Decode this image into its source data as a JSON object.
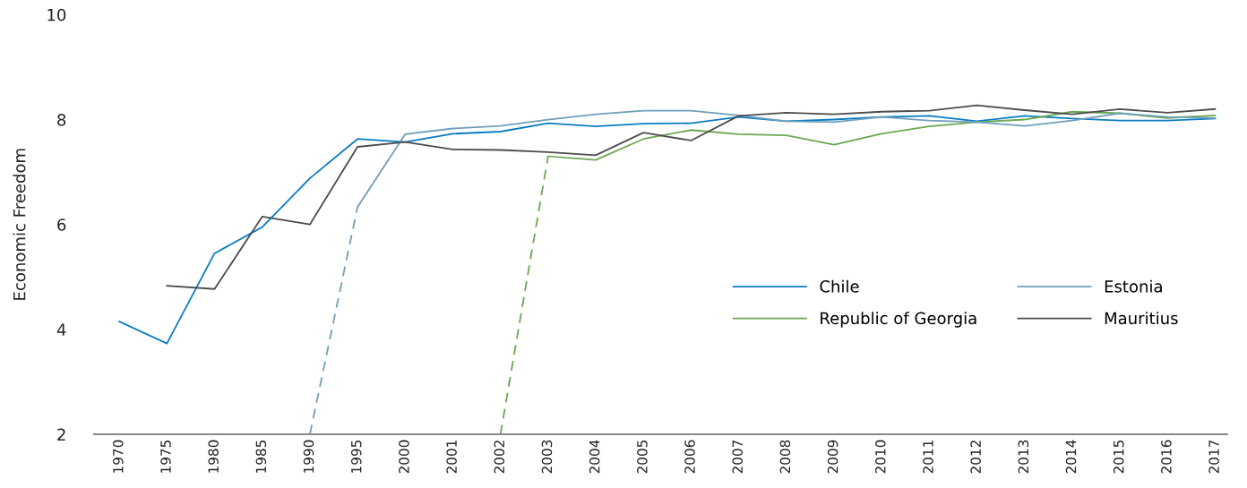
{
  "chart_data": {
    "type": "line",
    "ylabel": "Economic Freedom",
    "categories": [
      "1970",
      "1975",
      "1980",
      "1985",
      "1990",
      "1995",
      "2000",
      "2001",
      "2002",
      "2003",
      "2004",
      "2005",
      "2006",
      "2007",
      "2008",
      "2009",
      "2010",
      "2011",
      "2012",
      "2013",
      "2014",
      "2015",
      "2016",
      "2017"
    ],
    "ylim": [
      2,
      10
    ],
    "yticks": [
      2,
      4,
      6,
      8,
      10
    ],
    "grid": false,
    "legend": "bottom right",
    "marker": "none",
    "line_style": "solid",
    "series": [
      {
        "name": "Chile",
        "color": "#0a7cc1",
        "values": [
          4.15,
          3.73,
          5.45,
          5.95,
          6.88,
          7.63,
          7.57,
          7.73,
          7.77,
          7.93,
          7.87,
          7.92,
          7.93,
          8.05,
          7.97,
          8.0,
          8.05,
          8.07,
          7.97,
          8.07,
          8.02,
          7.98,
          7.98,
          8.02
        ]
      },
      {
        "name": "Republic of Georgia",
        "color": "#6aa84f",
        "values": [
          null,
          null,
          null,
          null,
          null,
          null,
          null,
          null,
          null,
          7.3,
          7.23,
          7.63,
          7.8,
          7.72,
          7.7,
          7.52,
          7.73,
          7.87,
          7.95,
          8.0,
          8.15,
          8.12,
          8.03,
          8.08
        ]
      },
      {
        "name": "Estonia",
        "color": "#6f9fba",
        "values": [
          null,
          null,
          null,
          null,
          null,
          6.33,
          7.72,
          7.83,
          7.88,
          8.0,
          8.1,
          8.17,
          8.17,
          8.08,
          7.97,
          7.95,
          8.05,
          7.98,
          7.95,
          7.88,
          7.98,
          8.12,
          8.05,
          8.03
        ]
      },
      {
        "name": "Mauritius",
        "color": "#4d4d4d",
        "values": [
          null,
          4.83,
          4.77,
          6.15,
          6.0,
          7.48,
          7.57,
          7.43,
          7.42,
          7.38,
          7.32,
          7.75,
          7.6,
          8.07,
          8.13,
          8.1,
          8.15,
          8.17,
          8.27,
          8.18,
          8.1,
          8.2,
          8.13,
          8.2
        ]
      },
      {
        "color": "#6f9fba",
        "line_style": "dashed",
        "values": [
          null,
          null,
          null,
          null,
          2,
          6.33,
          null,
          null,
          null,
          null,
          null,
          null,
          null,
          null,
          null,
          null,
          null,
          null,
          null,
          null,
          null,
          null,
          null,
          null
        ]
      },
      {
        "color": "#6aa84f",
        "line_style": "dashed",
        "values": [
          null,
          null,
          null,
          null,
          null,
          null,
          null,
          null,
          2,
          7.3,
          null,
          null,
          null,
          null,
          null,
          null,
          null,
          null,
          null,
          null,
          null,
          null,
          null,
          null
        ]
      }
    ]
  }
}
